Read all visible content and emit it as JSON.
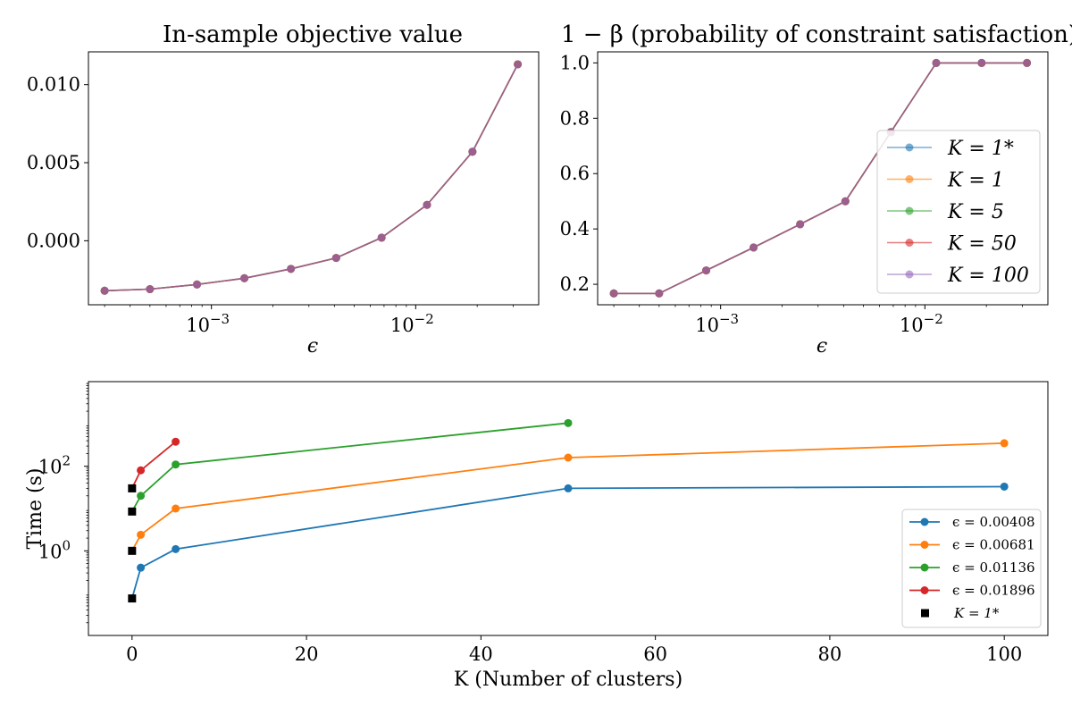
{
  "chart_data": [
    {
      "type": "line",
      "title": "In-sample objective value",
      "xlabel": "ϵ",
      "ylabel": "",
      "xscale": "log",
      "xlim": [
        0.00025,
        0.04
      ],
      "ylim": [
        -0.0041,
        0.0121
      ],
      "xticks": [
        {
          "value": 0.001,
          "label": "10",
          "exp": "−3"
        },
        {
          "value": 0.01,
          "label": "10",
          "exp": "−2"
        }
      ],
      "yticks": [
        {
          "value": 0.01,
          "label": "0.010"
        },
        {
          "value": 0.005,
          "label": "0.005"
        },
        {
          "value": 0.0,
          "label": "0.000"
        }
      ],
      "x": [
        0.0003,
        0.0005,
        0.00085,
        0.00145,
        0.00245,
        0.00408,
        0.00681,
        0.01136,
        0.01896,
        0.0316
      ],
      "series": [
        {
          "name": "K = 1*",
          "color": "#1f77b4",
          "values": [
            -0.0032,
            -0.0031,
            -0.0028,
            -0.0024,
            -0.0018,
            -0.0011,
            0.0002,
            0.0023,
            0.0057,
            0.0113
          ]
        },
        {
          "name": "K = 1",
          "color": "#ff7f0e",
          "values": [
            -0.0032,
            -0.0031,
            -0.0028,
            -0.0024,
            -0.0018,
            -0.0011,
            0.0002,
            0.0023,
            0.0057,
            0.0113
          ]
        },
        {
          "name": "K = 5",
          "color": "#2ca02c",
          "values": [
            -0.0032,
            -0.0031,
            -0.0028,
            -0.0024,
            -0.0018,
            -0.0011,
            0.0002,
            0.0023,
            0.0057,
            0.0113
          ]
        },
        {
          "name": "K = 50",
          "color": "#d62728",
          "values": [
            -0.0032,
            -0.0031,
            -0.0028,
            -0.0024,
            -0.0018,
            -0.0011,
            0.0002,
            0.0023,
            0.0057,
            0.0113
          ]
        },
        {
          "name": "K = 100",
          "color": "#9467bd",
          "values": [
            -0.0032,
            -0.0031,
            -0.0028,
            -0.0024,
            -0.0018,
            -0.0011,
            0.0002,
            0.0023,
            0.0057,
            0.0113
          ]
        }
      ],
      "grid": false,
      "legend": "none"
    },
    {
      "type": "line",
      "title": "1 − β (probability of constraint satisfaction)",
      "xlabel": "ϵ",
      "ylabel": "",
      "xscale": "log",
      "xlim": [
        0.00025,
        0.04
      ],
      "ylim": [
        0.126,
        1.04
      ],
      "xticks": [
        {
          "value": 0.001,
          "label": "10",
          "exp": "−3"
        },
        {
          "value": 0.01,
          "label": "10",
          "exp": "−2"
        }
      ],
      "yticks": [
        {
          "value": 1.0,
          "label": "1.0"
        },
        {
          "value": 0.8,
          "label": "0.8"
        },
        {
          "value": 0.6,
          "label": "0.6"
        },
        {
          "value": 0.4,
          "label": "0.4"
        },
        {
          "value": 0.2,
          "label": "0.2"
        }
      ],
      "x": [
        0.0003,
        0.0005,
        0.00085,
        0.00145,
        0.00245,
        0.00408,
        0.00681,
        0.01136,
        0.01896,
        0.0316
      ],
      "series": [
        {
          "name": "K = 1*",
          "color": "#1f77b4",
          "values": [
            0.167,
            0.167,
            0.25,
            0.333,
            0.417,
            0.5,
            0.75,
            1.0,
            1.0,
            1.0
          ]
        },
        {
          "name": "K = 1",
          "color": "#ff7f0e",
          "values": [
            0.167,
            0.167,
            0.25,
            0.333,
            0.417,
            0.5,
            0.75,
            1.0,
            1.0,
            1.0
          ]
        },
        {
          "name": "K = 5",
          "color": "#2ca02c",
          "values": [
            0.167,
            0.167,
            0.25,
            0.333,
            0.417,
            0.5,
            0.75,
            1.0,
            1.0,
            1.0
          ]
        },
        {
          "name": "K = 50",
          "color": "#d62728",
          "values": [
            0.167,
            0.167,
            0.25,
            0.333,
            0.417,
            0.5,
            0.75,
            1.0,
            1.0,
            1.0
          ]
        },
        {
          "name": "K = 100",
          "color": "#9467bd",
          "values": [
            0.167,
            0.167,
            0.25,
            0.333,
            0.417,
            0.5,
            0.75,
            1.0,
            1.0,
            1.0
          ]
        }
      ],
      "grid": false,
      "legend": "right"
    },
    {
      "type": "line",
      "title": "",
      "xlabel": "K (Number of clusters)",
      "ylabel": "Time (s)",
      "yscale": "log",
      "xlim": [
        -5,
        105
      ],
      "ylim": [
        0.01,
        10000
      ],
      "xticks": [
        {
          "value": 0,
          "label": "0"
        },
        {
          "value": 20,
          "label": "20"
        },
        {
          "value": 40,
          "label": "40"
        },
        {
          "value": 60,
          "label": "60"
        },
        {
          "value": 80,
          "label": "80"
        },
        {
          "value": 100,
          "label": "100"
        }
      ],
      "yticks": [
        {
          "value": 100,
          "label": "10",
          "exp": "2"
        },
        {
          "value": 1,
          "label": "10",
          "exp": "0"
        }
      ],
      "series": [
        {
          "name": "ϵ = 0.00408",
          "color": "#1f77b4",
          "x": [
            1,
            5,
            50,
            100
          ],
          "values": [
            0.4,
            1.1,
            30,
            33
          ]
        },
        {
          "name": "ϵ = 0.00681",
          "color": "#ff7f0e",
          "x": [
            1,
            5,
            50,
            100
          ],
          "values": [
            2.4,
            10,
            160,
            350
          ]
        },
        {
          "name": "ϵ = 0.01136",
          "color": "#2ca02c",
          "x": [
            1,
            5,
            50
          ],
          "values": [
            20,
            110,
            1050
          ]
        },
        {
          "name": "ϵ = 0.01896",
          "color": "#d62728",
          "x": [
            1,
            5
          ],
          "values": [
            80,
            380
          ]
        }
      ],
      "k1star": {
        "name": "K = 1*",
        "color": "#000000",
        "x": [
          0,
          0,
          0,
          0
        ],
        "values": [
          0.075,
          1.0,
          8.5,
          30
        ]
      },
      "grid": false,
      "legend": "lower-right"
    }
  ]
}
